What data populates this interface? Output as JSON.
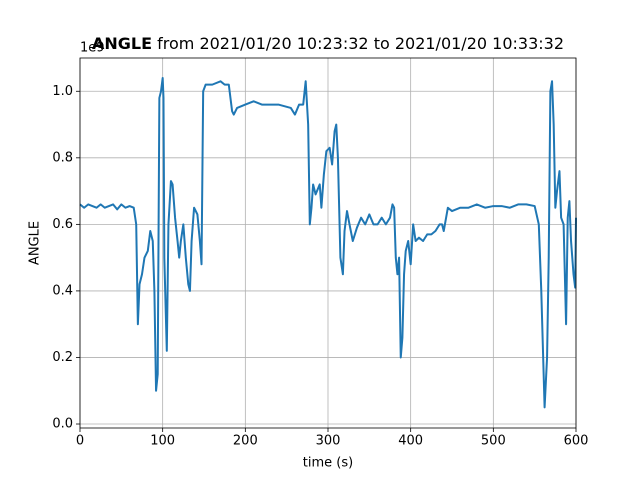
{
  "chart_data": {
    "type": "line",
    "title_bold": "ANGLE",
    "title_rest": " from 2021/01/20 10:23:32 to 2021/01/20 10:33:32",
    "x_label": "time (s)",
    "y_label": "ANGLE",
    "y_offset_text": "1e9",
    "xlim": [
      0,
      600
    ],
    "ylim": [
      -0.012,
      1.1
    ],
    "xticks": [
      0,
      100,
      200,
      300,
      400,
      500,
      600
    ],
    "yticks": [
      {
        "value": 0,
        "label": "0.0"
      },
      0.2,
      0.4,
      0.6,
      0.8,
      {
        "value": 1,
        "label": "1.0"
      }
    ],
    "grid": true,
    "series": [
      {
        "color": "#1f77b4",
        "x": [
          0,
          5,
          10,
          15,
          20,
          25,
          30,
          35,
          40,
          45,
          50,
          55,
          60,
          65,
          68,
          70,
          72,
          75,
          78,
          82,
          85,
          88,
          90,
          92,
          94,
          96,
          98,
          100,
          101,
          102,
          105,
          107,
          110,
          112,
          115,
          118,
          120,
          122,
          125,
          128,
          131,
          133,
          135,
          138,
          142,
          145,
          147,
          149,
          152,
          160,
          170,
          175,
          180,
          184,
          186,
          190,
          200,
          210,
          220,
          240,
          255,
          260,
          265,
          270,
          273,
          276,
          278,
          280,
          282,
          285,
          290,
          292,
          295,
          298,
          302,
          305,
          308,
          310,
          312,
          315,
          318,
          320,
          323,
          326,
          330,
          335,
          340,
          345,
          350,
          355,
          360,
          365,
          370,
          375,
          378,
          380,
          382,
          384,
          386,
          388,
          390,
          392,
          394,
          397,
          400,
          403,
          406,
          410,
          415,
          420,
          425,
          430,
          435,
          438,
          440,
          445,
          450,
          460,
          470,
          480,
          490,
          500,
          510,
          520,
          530,
          540,
          550,
          555,
          558,
          562,
          565,
          567,
          569,
          571,
          573,
          575,
          577,
          580,
          582,
          585,
          588,
          590,
          592,
          594,
          597,
          599,
          600
        ],
        "values": [
          0.66,
          0.65,
          0.66,
          0.655,
          0.65,
          0.66,
          0.65,
          0.655,
          0.66,
          0.645,
          0.66,
          0.65,
          0.655,
          0.65,
          0.6,
          0.3,
          0.42,
          0.45,
          0.5,
          0.52,
          0.58,
          0.55,
          0.4,
          0.1,
          0.15,
          0.98,
          1.0,
          1.04,
          0.98,
          0.5,
          0.22,
          0.6,
          0.73,
          0.72,
          0.62,
          0.55,
          0.5,
          0.55,
          0.6,
          0.5,
          0.42,
          0.4,
          0.55,
          0.65,
          0.63,
          0.55,
          0.48,
          1.0,
          1.02,
          1.02,
          1.03,
          1.02,
          1.02,
          0.94,
          0.93,
          0.95,
          0.96,
          0.97,
          0.96,
          0.96,
          0.95,
          0.93,
          0.96,
          0.96,
          1.03,
          0.9,
          0.6,
          0.65,
          0.72,
          0.69,
          0.72,
          0.65,
          0.75,
          0.82,
          0.83,
          0.78,
          0.88,
          0.9,
          0.8,
          0.5,
          0.45,
          0.58,
          0.64,
          0.6,
          0.55,
          0.59,
          0.62,
          0.6,
          0.63,
          0.6,
          0.6,
          0.62,
          0.6,
          0.62,
          0.66,
          0.65,
          0.5,
          0.45,
          0.5,
          0.2,
          0.26,
          0.45,
          0.52,
          0.55,
          0.48,
          0.6,
          0.55,
          0.56,
          0.55,
          0.57,
          0.57,
          0.58,
          0.6,
          0.6,
          0.58,
          0.65,
          0.64,
          0.65,
          0.65,
          0.66,
          0.65,
          0.655,
          0.655,
          0.65,
          0.66,
          0.66,
          0.655,
          0.6,
          0.4,
          0.05,
          0.2,
          0.5,
          1.0,
          1.03,
          0.9,
          0.65,
          0.7,
          0.76,
          0.62,
          0.6,
          0.3,
          0.62,
          0.67,
          0.55,
          0.45,
          0.41,
          0.62
        ]
      }
    ]
  }
}
